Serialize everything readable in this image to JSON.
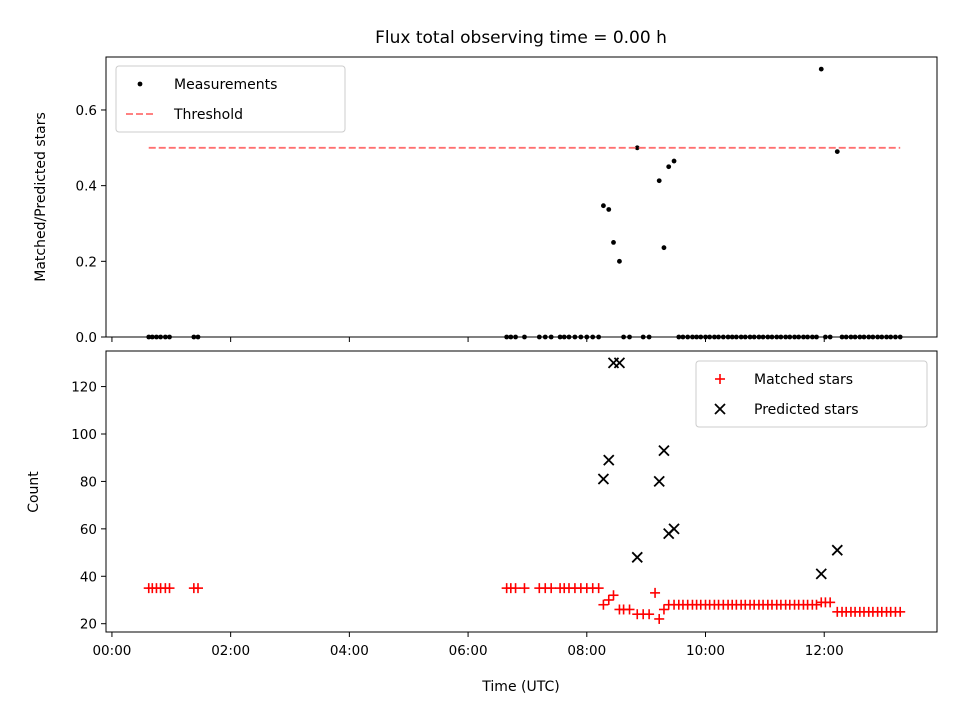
{
  "chart_data": [
    {
      "type": "scatter",
      "title": "Flux total observing time = 0.00 h",
      "xlabel": "",
      "ylabel": "Matched/Predicted stars",
      "xlim": [
        -0.1,
        13.9
      ],
      "ylim": [
        0,
        0.74
      ],
      "yticks": [
        0.0,
        0.2,
        0.4,
        0.6
      ],
      "ytick_labels": [
        "0.0",
        "0.2",
        "0.4",
        "0.6"
      ],
      "legend_position": "top-left",
      "series": [
        {
          "name": "Measurements",
          "marker": "dot",
          "color": "#000000",
          "points": [
            [
              0.62,
              0
            ],
            [
              0.68,
              0
            ],
            [
              0.75,
              0
            ],
            [
              0.82,
              0
            ],
            [
              0.9,
              0
            ],
            [
              0.97,
              0
            ],
            [
              1.38,
              0
            ],
            [
              1.45,
              0
            ],
            [
              6.65,
              0
            ],
            [
              6.72,
              0
            ],
            [
              6.8,
              0
            ],
            [
              6.95,
              0
            ],
            [
              7.2,
              0
            ],
            [
              7.3,
              0
            ],
            [
              7.4,
              0
            ],
            [
              7.55,
              0
            ],
            [
              7.62,
              0
            ],
            [
              7.7,
              0
            ],
            [
              7.8,
              0
            ],
            [
              7.9,
              0
            ],
            [
              8.0,
              0
            ],
            [
              8.1,
              0
            ],
            [
              8.2,
              0
            ],
            [
              8.28,
              0.347
            ],
            [
              8.37,
              0.337
            ],
            [
              8.45,
              0.25
            ],
            [
              8.55,
              0.2
            ],
            [
              8.62,
              0
            ],
            [
              8.72,
              0
            ],
            [
              8.85,
              0.5
            ],
            [
              8.95,
              0
            ],
            [
              9.05,
              0
            ],
            [
              9.22,
              0.413
            ],
            [
              9.3,
              0.236
            ],
            [
              9.38,
              0.45
            ],
            [
              9.47,
              0.465
            ],
            [
              9.55,
              0
            ],
            [
              9.62,
              0
            ],
            [
              9.7,
              0
            ],
            [
              9.78,
              0
            ],
            [
              9.85,
              0
            ],
            [
              9.92,
              0
            ],
            [
              10.0,
              0
            ],
            [
              10.07,
              0
            ],
            [
              10.15,
              0
            ],
            [
              10.22,
              0
            ],
            [
              10.3,
              0
            ],
            [
              10.38,
              0
            ],
            [
              10.45,
              0
            ],
            [
              10.52,
              0
            ],
            [
              10.6,
              0
            ],
            [
              10.67,
              0
            ],
            [
              10.75,
              0
            ],
            [
              10.82,
              0
            ],
            [
              10.9,
              0
            ],
            [
              10.97,
              0
            ],
            [
              11.05,
              0
            ],
            [
              11.12,
              0
            ],
            [
              11.2,
              0
            ],
            [
              11.27,
              0
            ],
            [
              11.35,
              0
            ],
            [
              11.42,
              0
            ],
            [
              11.5,
              0
            ],
            [
              11.57,
              0
            ],
            [
              11.65,
              0
            ],
            [
              11.72,
              0
            ],
            [
              11.8,
              0
            ],
            [
              11.87,
              0
            ],
            [
              11.95,
              0.708
            ],
            [
              12.02,
              0
            ],
            [
              12.1,
              0
            ],
            [
              12.22,
              0.49
            ],
            [
              12.3,
              0
            ],
            [
              12.37,
              0
            ],
            [
              12.45,
              0
            ],
            [
              12.52,
              0
            ],
            [
              12.6,
              0
            ],
            [
              12.67,
              0
            ],
            [
              12.75,
              0
            ],
            [
              12.82,
              0
            ],
            [
              12.9,
              0
            ],
            [
              12.97,
              0
            ],
            [
              13.05,
              0
            ],
            [
              13.12,
              0
            ],
            [
              13.2,
              0
            ],
            [
              13.28,
              0
            ]
          ]
        },
        {
          "name": "Threshold",
          "line": "dashed",
          "color": "#ff7070",
          "x": [
            0.62,
            13.28
          ],
          "y": [
            0.5,
            0.5
          ]
        }
      ]
    },
    {
      "type": "scatter",
      "title": "",
      "xlabel": "Time (UTC)",
      "ylabel": "Count",
      "xlim": [
        -0.1,
        13.9
      ],
      "ylim": [
        16.5,
        135
      ],
      "yticks": [
        20,
        40,
        60,
        80,
        100,
        120
      ],
      "ytick_labels": [
        "20",
        "40",
        "60",
        "80",
        "100",
        "120"
      ],
      "xticks": [
        0,
        2,
        4,
        6,
        8,
        10,
        12
      ],
      "xtick_labels": [
        "00:00",
        "02:00",
        "04:00",
        "06:00",
        "08:00",
        "10:00",
        "12:00"
      ],
      "legend_position": "top-right",
      "series": [
        {
          "name": "Matched stars",
          "marker": "plus",
          "color": "#ff0000",
          "points": [
            [
              0.62,
              35
            ],
            [
              0.68,
              35
            ],
            [
              0.75,
              35
            ],
            [
              0.82,
              35
            ],
            [
              0.9,
              35
            ],
            [
              0.97,
              35
            ],
            [
              1.38,
              35
            ],
            [
              1.45,
              35
            ],
            [
              6.65,
              35
            ],
            [
              6.72,
              35
            ],
            [
              6.8,
              35
            ],
            [
              6.95,
              35
            ],
            [
              7.2,
              35
            ],
            [
              7.3,
              35
            ],
            [
              7.4,
              35
            ],
            [
              7.55,
              35
            ],
            [
              7.62,
              35
            ],
            [
              7.7,
              35
            ],
            [
              7.8,
              35
            ],
            [
              7.9,
              35
            ],
            [
              8.0,
              35
            ],
            [
              8.1,
              35
            ],
            [
              8.2,
              35
            ],
            [
              8.28,
              28
            ],
            [
              8.37,
              30
            ],
            [
              8.45,
              32
            ],
            [
              8.55,
              26
            ],
            [
              8.62,
              26
            ],
            [
              8.72,
              26
            ],
            [
              8.85,
              24
            ],
            [
              8.95,
              24
            ],
            [
              9.05,
              24
            ],
            [
              9.15,
              33
            ],
            [
              9.22,
              22
            ],
            [
              9.3,
              26
            ],
            [
              9.38,
              28
            ],
            [
              9.47,
              28
            ],
            [
              9.55,
              28
            ],
            [
              9.62,
              28
            ],
            [
              9.7,
              28
            ],
            [
              9.78,
              28
            ],
            [
              9.85,
              28
            ],
            [
              9.92,
              28
            ],
            [
              10.0,
              28
            ],
            [
              10.07,
              28
            ],
            [
              10.15,
              28
            ],
            [
              10.22,
              28
            ],
            [
              10.3,
              28
            ],
            [
              10.38,
              28
            ],
            [
              10.45,
              28
            ],
            [
              10.52,
              28
            ],
            [
              10.6,
              28
            ],
            [
              10.67,
              28
            ],
            [
              10.75,
              28
            ],
            [
              10.82,
              28
            ],
            [
              10.9,
              28
            ],
            [
              10.97,
              28
            ],
            [
              11.05,
              28
            ],
            [
              11.12,
              28
            ],
            [
              11.2,
              28
            ],
            [
              11.27,
              28
            ],
            [
              11.35,
              28
            ],
            [
              11.42,
              28
            ],
            [
              11.5,
              28
            ],
            [
              11.57,
              28
            ],
            [
              11.65,
              28
            ],
            [
              11.72,
              28
            ],
            [
              11.8,
              28
            ],
            [
              11.87,
              28
            ],
            [
              11.95,
              29
            ],
            [
              12.02,
              29
            ],
            [
              12.1,
              29
            ],
            [
              12.22,
              25
            ],
            [
              12.3,
              25
            ],
            [
              12.37,
              25
            ],
            [
              12.45,
              25
            ],
            [
              12.52,
              25
            ],
            [
              12.6,
              25
            ],
            [
              12.67,
              25
            ],
            [
              12.75,
              25
            ],
            [
              12.82,
              25
            ],
            [
              12.9,
              25
            ],
            [
              12.97,
              25
            ],
            [
              13.05,
              25
            ],
            [
              13.12,
              25
            ],
            [
              13.2,
              25
            ],
            [
              13.28,
              25
            ]
          ]
        },
        {
          "name": "Predicted stars",
          "marker": "x",
          "color": "#000000",
          "points": [
            [
              8.28,
              81
            ],
            [
              8.37,
              89
            ],
            [
              8.45,
              130
            ],
            [
              8.55,
              130
            ],
            [
              8.85,
              48
            ],
            [
              9.22,
              80
            ],
            [
              9.3,
              93
            ],
            [
              9.38,
              58
            ],
            [
              9.47,
              60
            ],
            [
              11.95,
              41
            ],
            [
              12.22,
              51
            ]
          ]
        }
      ]
    }
  ]
}
